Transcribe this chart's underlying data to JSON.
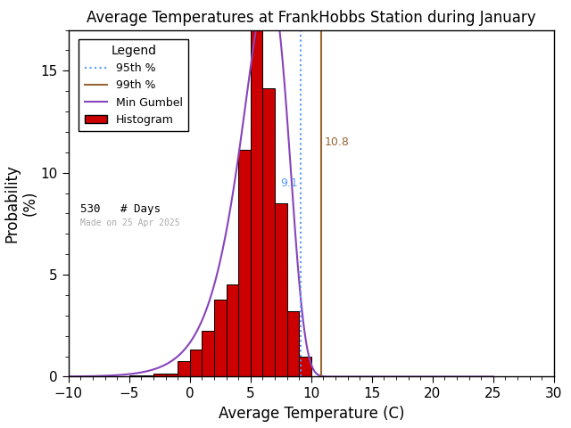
{
  "title": "Average Temperatures at FrankHobbs Station during January",
  "xlabel": "Average Temperature (C)",
  "ylabel": "Probability\n(%)",
  "xlim": [
    -10,
    30
  ],
  "ylim": [
    0,
    17
  ],
  "xticks": [
    -10,
    -5,
    0,
    5,
    10,
    15,
    20,
    25,
    30
  ],
  "yticks": [
    0,
    5,
    10,
    15
  ],
  "bin_edges": [
    -11,
    -10,
    -9,
    -8,
    -7,
    -6,
    -5,
    -4,
    -3,
    -2,
    -1,
    0,
    1,
    2,
    3,
    4,
    5,
    6,
    7,
    8,
    9,
    10,
    11,
    12,
    13,
    14
  ],
  "bin_heights": [
    0.07,
    0.0,
    0.07,
    0.0,
    0.0,
    0.0,
    0.07,
    0.07,
    0.13,
    0.13,
    0.75,
    1.32,
    2.26,
    3.77,
    4.53,
    11.13,
    16.98,
    14.15,
    8.49,
    3.21,
    1.0,
    0.0,
    0.0,
    0.0,
    0.0
  ],
  "hist_color": "#cc0000",
  "hist_edgecolor": "#000000",
  "pct_95": 9.1,
  "pct_99": 10.8,
  "pct_95_color": "#5599ff",
  "pct_99_color": "#996633",
  "gumbel_color": "#8844bb",
  "gumbel_mu": 6.5,
  "gumbel_beta": 1.9,
  "gumbel_scale": 100.0,
  "n_days": 530,
  "made_on": "Made on 25 Apr 2025",
  "legend_title": "Legend",
  "bg_color": "#ffffff",
  "tick_fontsize": 11,
  "label_fontsize": 12,
  "title_fontsize": 12
}
